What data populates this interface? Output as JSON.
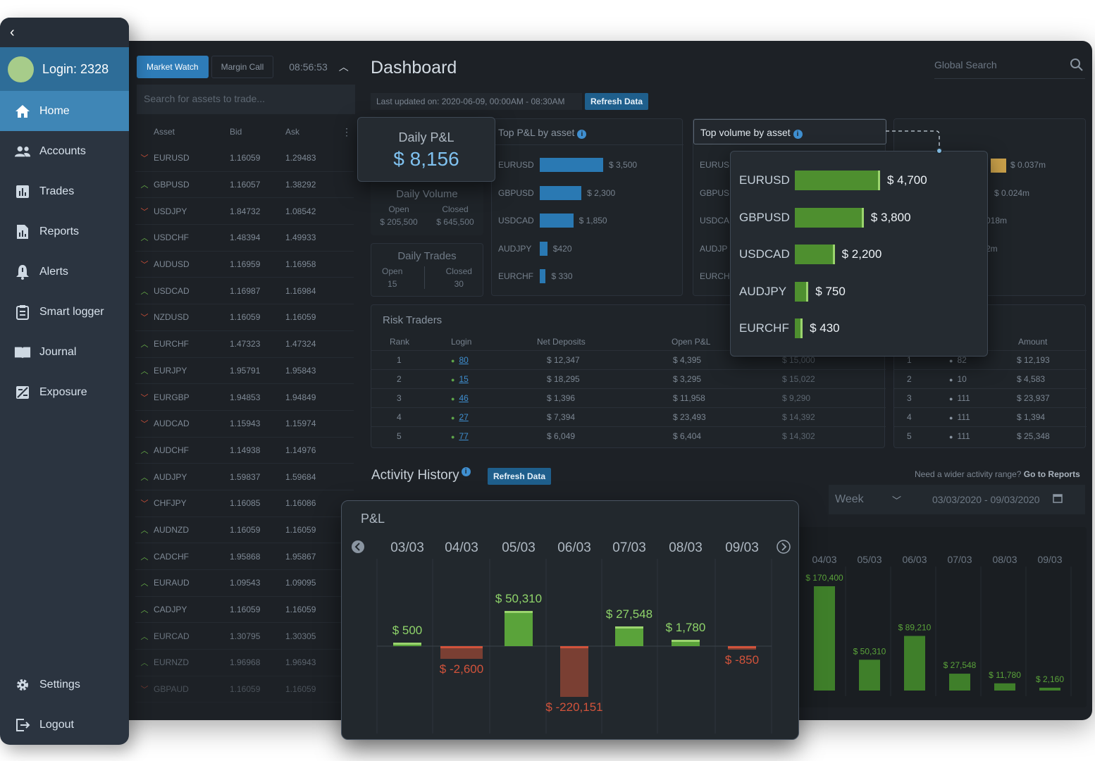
{
  "sidebar": {
    "login_label": "Login: 2328",
    "items": [
      {
        "label": "Home",
        "icon": "home-icon"
      },
      {
        "label": "Accounts",
        "icon": "users-icon"
      },
      {
        "label": "Trades",
        "icon": "chart-bars-icon"
      },
      {
        "label": "Reports",
        "icon": "report-icon"
      },
      {
        "label": "Alerts",
        "icon": "bell-icon"
      },
      {
        "label": "Smart logger",
        "icon": "clipboard-icon"
      },
      {
        "label": "Journal",
        "icon": "book-icon"
      },
      {
        "label": "Exposure",
        "icon": "exposure-icon"
      }
    ],
    "settings_label": "Settings",
    "logout_label": "Logout"
  },
  "market_watch": {
    "tab_market_watch": "Market Watch",
    "tab_margin_call": "Margin Call",
    "time": "08:56:53",
    "search_placeholder": "Search for assets to trade...",
    "headers": {
      "asset": "Asset",
      "bid": "Bid",
      "ask": "Ask"
    },
    "rows": [
      {
        "asset": "EURUSD",
        "bid": "1.16059",
        "ask": "1.29483",
        "dir": "down"
      },
      {
        "asset": "GBPUSD",
        "bid": "1.16057",
        "ask": "1.38292",
        "dir": "up"
      },
      {
        "asset": "USDJPY",
        "bid": "1.84732",
        "ask": "1.08542",
        "dir": "down"
      },
      {
        "asset": "USDCHF",
        "bid": "1.48394",
        "ask": "1.49933",
        "dir": "up"
      },
      {
        "asset": "AUDUSD",
        "bid": "1.16959",
        "ask": "1.16958",
        "dir": "down"
      },
      {
        "asset": "USDCAD",
        "bid": "1.16987",
        "ask": "1.16984",
        "dir": "up"
      },
      {
        "asset": "NZDUSD",
        "bid": "1.16059",
        "ask": "1.16059",
        "dir": "down"
      },
      {
        "asset": "EURCHF",
        "bid": "1.47323",
        "ask": "1.47324",
        "dir": "up"
      },
      {
        "asset": "EURJPY",
        "bid": "1.95791",
        "ask": "1.95843",
        "dir": "up"
      },
      {
        "asset": "EURGBP",
        "bid": "1.94853",
        "ask": "1.94849",
        "dir": "down"
      },
      {
        "asset": "AUDCAD",
        "bid": "1.15943",
        "ask": "1.15974",
        "dir": "down"
      },
      {
        "asset": "AUDCHF",
        "bid": "1.14938",
        "ask": "1.14976",
        "dir": "up"
      },
      {
        "asset": "AUDJPY",
        "bid": "1.59837",
        "ask": "1.59684",
        "dir": "up"
      },
      {
        "asset": "CHFJPY",
        "bid": "1.16085",
        "ask": "1.16086",
        "dir": "down"
      },
      {
        "asset": "AUDNZD",
        "bid": "1.16059",
        "ask": "1.16059",
        "dir": "up"
      },
      {
        "asset": "CADCHF",
        "bid": "1.95868",
        "ask": "1.95867",
        "dir": "up"
      },
      {
        "asset": "EURAUD",
        "bid": "1.09543",
        "ask": "1.09095",
        "dir": "up"
      },
      {
        "asset": "CADJPY",
        "bid": "1.16059",
        "ask": "1.16059",
        "dir": "up"
      },
      {
        "asset": "EURCAD",
        "bid": "1.30795",
        "ask": "1.30305",
        "dir": "up"
      },
      {
        "asset": "EURNZD",
        "bid": "1.96968",
        "ask": "1.96943",
        "dir": "up"
      },
      {
        "asset": "GBPAUD",
        "bid": "1.16059",
        "ask": "1.16059",
        "dir": "down"
      }
    ]
  },
  "dashboard": {
    "title": "Dashboard",
    "global_search_placeholder": "Global Search",
    "last_updated": "Last updated on: 2020-06-09, 00:00AM - 08:30AM",
    "refresh_label": "Refresh Data"
  },
  "daily_pnl": {
    "label": "Daily P&L",
    "value": "$ 8,156"
  },
  "daily_volume": {
    "label": "Daily Volume",
    "open_label": "Open",
    "closed_label": "Closed",
    "open_value": "$ 205,500",
    "closed_value": "$ 645,500"
  },
  "daily_trades": {
    "label": "Daily Trades",
    "open_label": "Open",
    "closed_label": "Closed",
    "open_value": "15",
    "closed_value": "30"
  },
  "top_pnl": {
    "title": "Top P&L by asset",
    "accent": "#2a79b3",
    "rows": [
      {
        "asset": "EURUSD",
        "value": 3500,
        "label": "$ 3,500"
      },
      {
        "asset": "GBPUSD",
        "value": 2300,
        "label": "$ 2,300"
      },
      {
        "asset": "USDCAD",
        "value": 1850,
        "label": "$ 1,850"
      },
      {
        "asset": "AUDJPY",
        "value": 420,
        "label": "$420"
      },
      {
        "asset": "EURCHF",
        "value": 330,
        "label": "$ 330"
      }
    ]
  },
  "top_volume": {
    "title": "Top volume by asset",
    "accent": "#4e8f2f",
    "rows": [
      {
        "asset": "EURUSD",
        "value": 4700,
        "label": "$ 4,700"
      },
      {
        "asset": "GBPUSD",
        "value": 3800,
        "label": "$ 3,800"
      },
      {
        "asset": "USDCAD",
        "value": 2200,
        "label": "$ 2,200"
      },
      {
        "asset": "AUDJPY",
        "value": 750,
        "label": "$ 750"
      },
      {
        "asset": "EURCHF",
        "value": 430,
        "label": "$ 430"
      }
    ],
    "bg_labels": [
      "EURUS",
      "GBPUS",
      "USDCA",
      "AUDJP",
      "EURCH"
    ]
  },
  "right_mini": {
    "labels": [
      "$ 0.037m",
      "$ 0.024m",
      "018m",
      "2m"
    ]
  },
  "risk_traders": {
    "title": "Risk Traders",
    "headers": [
      "Rank",
      "Login",
      "Net Deposits",
      "Open P&L"
    ],
    "rows": [
      {
        "rank": "1",
        "login": "80",
        "net": "$ 12,347",
        "open": "$ 4,395",
        "extra": "$ 15,000"
      },
      {
        "rank": "2",
        "login": "15",
        "net": "$ 18,295",
        "open": "$ 3,295",
        "extra": "$ 15,022"
      },
      {
        "rank": "3",
        "login": "46",
        "net": "$ 1,396",
        "open": "$ 11,958",
        "extra": "$ 9,290"
      },
      {
        "rank": "4",
        "login": "27",
        "net": "$ 7,394",
        "open": "$ 23,493",
        "extra": "$ 14,392"
      },
      {
        "rank": "5",
        "login": "77",
        "net": "$ 6,049",
        "open": "$ 6,404",
        "extra": "$ 14,302"
      }
    ]
  },
  "right_table": {
    "header_amount": "Amount",
    "rows": [
      {
        "rank": "1",
        "login": "82",
        "amount": "$ 12,193"
      },
      {
        "rank": "2",
        "login": "10",
        "amount": "$ 4,583"
      },
      {
        "rank": "3",
        "login": "111",
        "amount": "$ 23,937"
      },
      {
        "rank": "4",
        "login": "111",
        "amount": "$ 1,394"
      },
      {
        "rank": "5",
        "login": "111",
        "amount": "$ 25,348"
      }
    ]
  },
  "activity": {
    "title": "Activity History",
    "refresh_label": "Refresh Data",
    "wider_text": "Need a wider activity range?",
    "go_reports": "Go to Reports",
    "period": "Week",
    "date_range": "03/03/2020 - 09/03/2020"
  },
  "volume_bg_chart": {
    "type": "bar",
    "categories": [
      "04/03",
      "05/03",
      "06/03",
      "07/03",
      "08/03",
      "09/03"
    ],
    "values": [
      170400,
      50310,
      89210,
      27548,
      11780,
      2160
    ],
    "labels": [
      "$ 170,400",
      "$ 50,310",
      "$ 89,210",
      "$ 27,548",
      "$ 11,780",
      "$ 2,160"
    ]
  },
  "chart_data": {
    "type": "bar",
    "title": "P&L",
    "categories": [
      "03/03",
      "04/03",
      "05/03",
      "06/03",
      "07/03",
      "08/03",
      "09/03"
    ],
    "values": [
      500,
      -2600,
      50310,
      -220151,
      27548,
      1780,
      -850
    ],
    "labels": [
      "$ 500",
      "$ -2,600",
      "$ 50,310",
      "$ -220,151",
      "$ 27,548",
      "$ 1,780",
      "$ -850"
    ],
    "colors": {
      "positive": "#5aa33a",
      "negative": "#d2533b"
    }
  }
}
